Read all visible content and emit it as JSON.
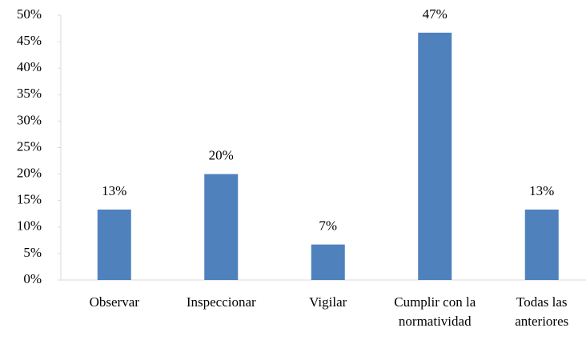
{
  "chart_data": {
    "type": "bar",
    "categories": [
      "Observar",
      "Inspeccionar",
      "Vigilar",
      "Cumplir con la normatividad",
      "Todas las anteriores"
    ],
    "values": [
      13.3,
      20,
      6.7,
      46.7,
      13.3
    ],
    "value_labels": [
      "13%",
      "20%",
      "7%",
      "47%",
      "13%"
    ],
    "color": "#4f81bd",
    "ylim": [
      0,
      50
    ],
    "yticks": [
      {
        "value": 0,
        "label": "0%"
      },
      {
        "value": 5,
        "label": "5%"
      },
      {
        "value": 10,
        "label": "10%"
      },
      {
        "value": 15,
        "label": "15%"
      },
      {
        "value": 20,
        "label": "20%"
      },
      {
        "value": 25,
        "label": "25%"
      },
      {
        "value": 30,
        "label": "30%"
      },
      {
        "value": 35,
        "label": "35%"
      },
      {
        "value": 40,
        "label": "40%"
      },
      {
        "value": 45,
        "label": "45%"
      },
      {
        "value": 50,
        "label": "50%"
      }
    ],
    "grid": false
  }
}
